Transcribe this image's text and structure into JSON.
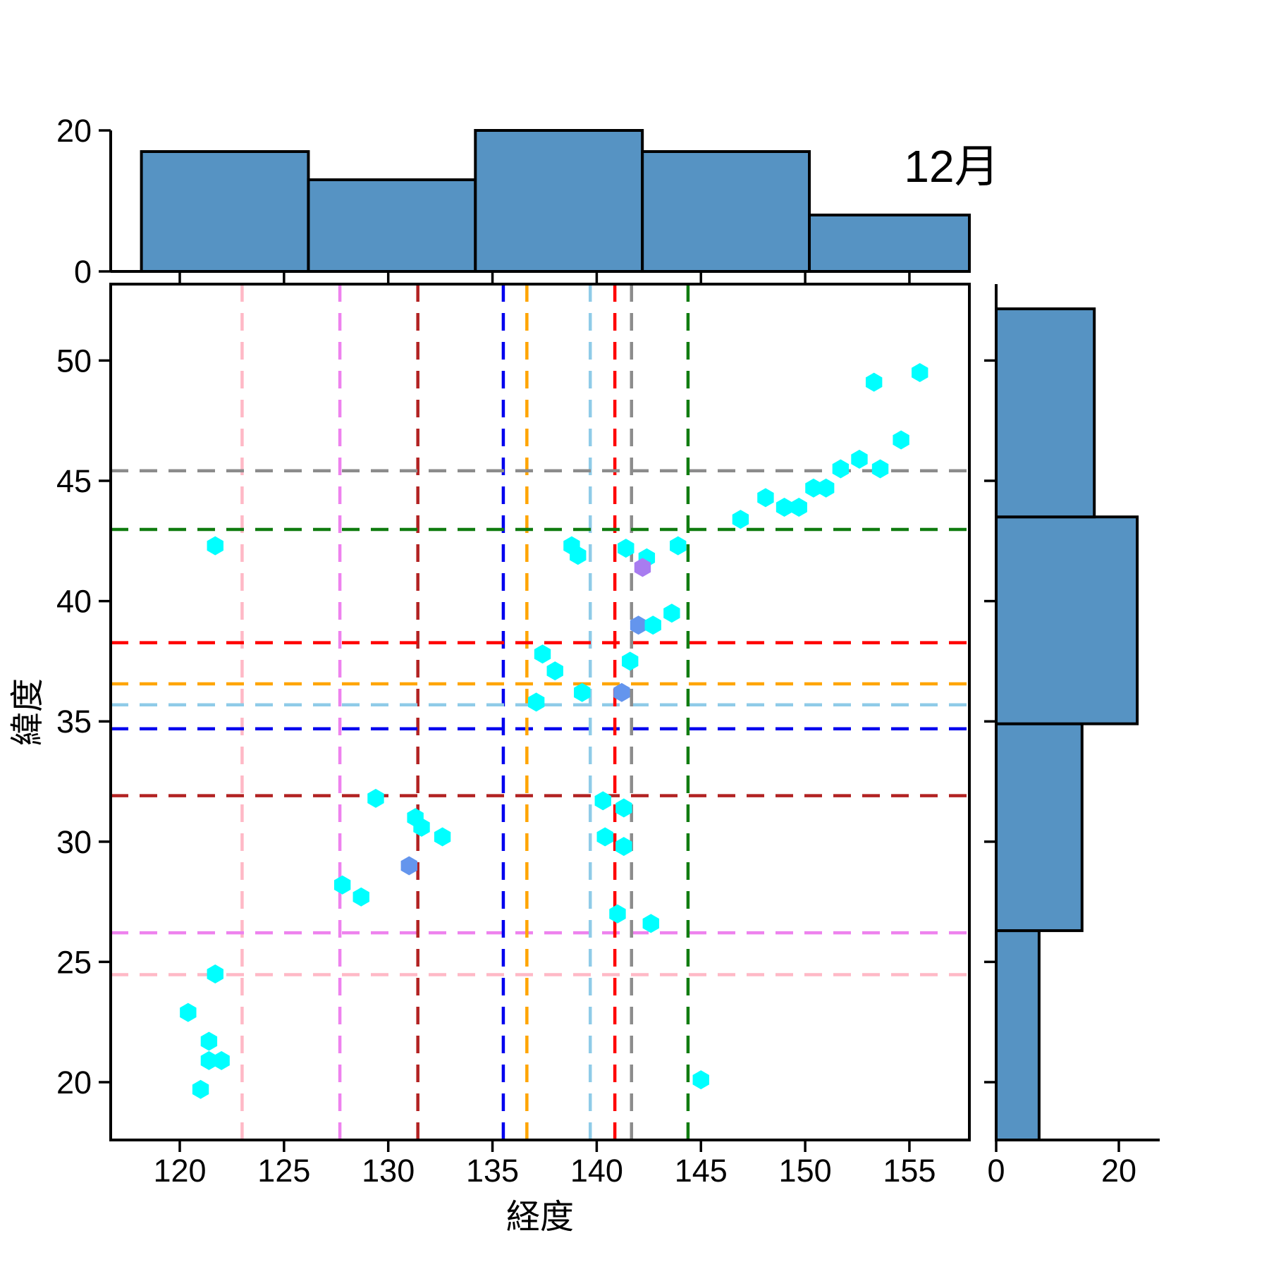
{
  "chart_data": {
    "type": "scatter",
    "title": "12月",
    "xlabel": "経度",
    "ylabel": "緯度",
    "xlim": [
      116.7,
      157.9
    ],
    "ylim": [
      17.6,
      53.2
    ],
    "xticks": [
      120,
      125,
      130,
      135,
      140,
      145,
      150,
      155
    ],
    "yticks": [
      20,
      25,
      30,
      35,
      40,
      45,
      50
    ],
    "grid": false,
    "legend": "none",
    "marker": "hexagon",
    "marker_color": "#00FFFF",
    "special_marker_colors": {
      "6": "#A87CF0",
      "7": "#6495ED",
      "15": "#6495ED",
      "32": "#6495ED"
    },
    "scatter_points": [
      [
        121.7,
        42.3
      ],
      [
        138.8,
        42.3
      ],
      [
        139.1,
        41.9
      ],
      [
        141.4,
        42.2
      ],
      [
        142.4,
        41.8
      ],
      [
        143.9,
        42.3
      ],
      [
        142.2,
        41.4
      ],
      [
        142.0,
        39.0
      ],
      [
        142.7,
        39.0
      ],
      [
        143.6,
        39.5
      ],
      [
        137.4,
        37.8
      ],
      [
        138.0,
        37.1
      ],
      [
        141.6,
        37.5
      ],
      [
        137.1,
        35.8
      ],
      [
        139.3,
        36.2
      ],
      [
        141.2,
        36.2
      ],
      [
        146.9,
        43.4
      ],
      [
        148.1,
        44.3
      ],
      [
        149.0,
        43.9
      ],
      [
        149.7,
        43.9
      ],
      [
        150.4,
        44.7
      ],
      [
        151.0,
        44.7
      ],
      [
        151.7,
        45.5
      ],
      [
        152.6,
        45.9
      ],
      [
        153.6,
        45.5
      ],
      [
        154.6,
        46.7
      ],
      [
        153.3,
        49.1
      ],
      [
        155.5,
        49.5
      ],
      [
        129.4,
        31.8
      ],
      [
        131.3,
        31.0
      ],
      [
        131.6,
        30.6
      ],
      [
        132.6,
        30.2
      ],
      [
        131.0,
        29.0
      ],
      [
        127.8,
        28.2
      ],
      [
        128.7,
        27.7
      ],
      [
        140.3,
        31.7
      ],
      [
        141.3,
        31.4
      ],
      [
        140.4,
        30.2
      ],
      [
        141.3,
        29.8
      ],
      [
        141.0,
        27.0
      ],
      [
        142.6,
        26.6
      ],
      [
        121.7,
        24.5
      ],
      [
        120.4,
        22.9
      ],
      [
        121.4,
        21.7
      ],
      [
        121.4,
        20.9
      ],
      [
        122.0,
        20.9
      ],
      [
        121.0,
        19.7
      ],
      [
        145.0,
        20.1
      ]
    ],
    "reference_lines": [
      {
        "name": "pink",
        "color": "#FFB9C6",
        "lon": 122.99,
        "lat": 24.47
      },
      {
        "name": "violet",
        "color": "#EE82EE",
        "lon": 127.68,
        "lat": 26.21
      },
      {
        "name": "darkred",
        "color": "#B22222",
        "lon": 131.42,
        "lat": 31.91
      },
      {
        "name": "blue",
        "color": "#0000EE",
        "lon": 135.52,
        "lat": 34.69
      },
      {
        "name": "orange",
        "color": "#FFA500",
        "lon": 136.65,
        "lat": 36.56
      },
      {
        "name": "skyblue",
        "color": "#8FCBE8",
        "lon": 139.69,
        "lat": 35.69
      },
      {
        "name": "red",
        "color": "#FF0000",
        "lon": 140.87,
        "lat": 38.27
      },
      {
        "name": "gray",
        "color": "#8C8C8C",
        "lon": 141.67,
        "lat": 45.42
      },
      {
        "name": "green",
        "color": "#107C10",
        "lon": 144.38,
        "lat": 42.98
      }
    ],
    "hist_top": {
      "axis_ticklabels": [
        "0",
        "20"
      ],
      "bar_color": "#5693C3",
      "bins": [
        {
          "lon_from": 118.16,
          "lon_to": 126.17,
          "count": 17
        },
        {
          "lon_from": 126.17,
          "lon_to": 134.18,
          "count": 13
        },
        {
          "lon_from": 134.18,
          "lon_to": 142.19,
          "count": 20
        },
        {
          "lon_from": 142.19,
          "lon_to": 150.2,
          "count": 17
        },
        {
          "lon_from": 150.2,
          "lon_to": 158.21,
          "count": 8
        }
      ]
    },
    "hist_right": {
      "axis_ticklabels": [
        "0",
        "20"
      ],
      "bar_color": "#5693C3",
      "bins": [
        {
          "lat_from": 17.59,
          "lat_to": 26.3,
          "count": 7
        },
        {
          "lat_from": 26.3,
          "lat_to": 34.9,
          "count": 14
        },
        {
          "lat_from": 34.9,
          "lat_to": 43.5,
          "count": 23
        },
        {
          "lat_from": 43.5,
          "lat_to": 52.15,
          "count": 16
        }
      ]
    }
  }
}
